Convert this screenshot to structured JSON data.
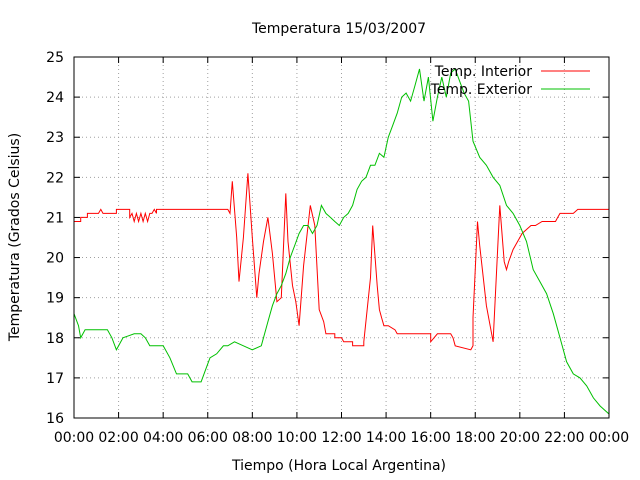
{
  "chart_data": {
    "type": "line",
    "title": "Temperatura 15/03/2007",
    "xlabel": "Tiempo (Hora Local Argentina)",
    "ylabel": "Temperatura (Grados Celsius)",
    "xlim": [
      0,
      24
    ],
    "ylim": [
      16,
      25
    ],
    "x_ticks": [
      0,
      2,
      4,
      6,
      8,
      10,
      12,
      14,
      16,
      18,
      20,
      22,
      24
    ],
    "x_tick_labels": [
      "00:00",
      "02:00",
      "04:00",
      "06:00",
      "08:00",
      "10:00",
      "12:00",
      "14:00",
      "16:00",
      "18:00",
      "20:00",
      "22:00",
      "00:00"
    ],
    "y_ticks": [
      16,
      17,
      18,
      19,
      20,
      21,
      22,
      23,
      24,
      25
    ],
    "y_tick_labels": [
      "16",
      "17",
      "18",
      "19",
      "20",
      "21",
      "22",
      "23",
      "24",
      "25"
    ],
    "grid": true,
    "legend_position": "top-right",
    "series": [
      {
        "name": "Temp. Interior",
        "color": "#ff0000",
        "x": [
          0,
          0.3,
          0.3,
          0.6,
          0.6,
          1.0,
          1.1,
          1.2,
          1.3,
          1.3,
          1.8,
          1.9,
          1.9,
          2.5,
          2.5,
          2.6,
          2.7,
          2.8,
          2.9,
          3.0,
          3.1,
          3.2,
          3.3,
          3.4,
          3.5,
          3.6,
          3.7,
          3.7,
          6.9,
          7.0,
          7.1,
          7.3,
          7.4,
          7.6,
          7.8,
          8.0,
          8.2,
          8.3,
          8.5,
          8.7,
          8.9,
          9.1,
          9.3,
          9.5,
          9.6,
          9.8,
          9.95,
          10.1,
          10.3,
          10.6,
          10.8,
          11.0,
          11.2,
          11.3,
          11.7,
          11.7,
          12.0,
          12.1,
          12.5,
          12.5,
          13.0,
          13.0,
          13.3,
          13.4,
          13.6,
          13.7,
          13.8,
          13.9,
          14.1,
          14.4,
          14.5,
          15.1,
          15.2,
          15.4,
          15.5,
          16.0,
          16.0,
          16.3,
          16.4,
          16.5,
          16.9,
          17.0,
          17.1,
          17.8,
          17.9,
          17.9,
          18.1,
          18.2,
          18.5,
          18.7,
          18.8,
          19.1,
          19.3,
          19.4,
          19.5,
          19.7,
          19.9,
          20.1,
          20.3,
          20.5,
          20.7,
          21.0,
          21.3,
          21.6,
          21.7,
          21.8,
          21.9,
          22.2,
          22.4,
          22.6,
          23.0,
          23.4,
          24.0
        ],
        "y": [
          20.9,
          20.9,
          21.0,
          21.0,
          21.1,
          21.1,
          21.1,
          21.2,
          21.1,
          21.1,
          21.1,
          21.1,
          21.2,
          21.2,
          21.0,
          21.1,
          20.9,
          21.1,
          20.9,
          21.1,
          20.9,
          21.1,
          20.9,
          21.1,
          21.1,
          21.2,
          21.1,
          21.2,
          21.2,
          21.1,
          21.9,
          20.5,
          19.4,
          20.5,
          22.1,
          20.5,
          19.0,
          19.6,
          20.4,
          21.0,
          20.1,
          18.9,
          19.0,
          21.6,
          20.4,
          19.3,
          18.9,
          18.3,
          19.8,
          21.3,
          20.8,
          18.7,
          18.4,
          18.1,
          18.1,
          18.0,
          18.0,
          17.9,
          17.9,
          17.8,
          17.8,
          17.9,
          19.5,
          20.8,
          19.3,
          18.7,
          18.5,
          18.3,
          18.3,
          18.2,
          18.1,
          18.1,
          18.1,
          18.1,
          18.1,
          18.1,
          17.9,
          18.1,
          18.1,
          18.1,
          18.1,
          18.0,
          17.8,
          17.7,
          17.8,
          18.5,
          20.9,
          20.3,
          18.8,
          18.2,
          17.9,
          21.3,
          19.9,
          19.7,
          19.9,
          20.2,
          20.4,
          20.6,
          20.7,
          20.8,
          20.8,
          20.9,
          20.9,
          20.9,
          21.0,
          21.1,
          21.1,
          21.1,
          21.1,
          21.2,
          21.2,
          21.2,
          21.2
        ]
      },
      {
        "name": "Temp. Exterior",
        "color": "#00c000",
        "x": [
          0,
          0.2,
          0.3,
          0.5,
          0.6,
          1.0,
          1.5,
          1.7,
          1.9,
          2.2,
          2.7,
          3.0,
          3.2,
          3.4,
          3.6,
          4.0,
          4.3,
          4.6,
          4.9,
          5.1,
          5.3,
          5.4,
          5.7,
          5.9,
          6.1,
          6.4,
          6.7,
          6.9,
          7.2,
          7.6,
          8.0,
          8.4,
          8.7,
          8.9,
          9.1,
          9.3,
          9.5,
          9.7,
          9.9,
          10.1,
          10.3,
          10.5,
          10.7,
          10.9,
          11.1,
          11.3,
          11.5,
          11.7,
          11.9,
          12.1,
          12.3,
          12.5,
          12.7,
          12.9,
          13.1,
          13.3,
          13.5,
          13.7,
          13.9,
          14.1,
          14.3,
          14.5,
          14.7,
          14.9,
          15.1,
          15.3,
          15.5,
          15.7,
          15.9,
          16.1,
          16.3,
          16.5,
          16.7,
          16.9,
          17.1,
          17.3,
          17.5,
          17.7,
          17.9,
          18.2,
          18.5,
          18.8,
          19.1,
          19.4,
          19.7,
          20.0,
          20.3,
          20.6,
          20.9,
          21.2,
          21.5,
          21.8,
          22.1,
          22.4,
          22.7,
          23.0,
          23.3,
          23.6,
          24.0
        ],
        "y": [
          18.6,
          18.3,
          18.0,
          18.2,
          18.2,
          18.2,
          18.2,
          18.0,
          17.7,
          18.0,
          18.1,
          18.1,
          18.0,
          17.8,
          17.8,
          17.8,
          17.5,
          17.1,
          17.1,
          17.1,
          16.9,
          16.9,
          16.9,
          17.2,
          17.5,
          17.6,
          17.8,
          17.8,
          17.9,
          17.8,
          17.7,
          17.8,
          18.4,
          18.8,
          19.1,
          19.3,
          19.6,
          20.0,
          20.3,
          20.6,
          20.8,
          20.8,
          20.6,
          20.8,
          21.3,
          21.1,
          21.0,
          20.9,
          20.8,
          21.0,
          21.1,
          21.3,
          21.7,
          21.9,
          22.0,
          22.3,
          22.3,
          22.6,
          22.5,
          23.0,
          23.3,
          23.6,
          24.0,
          24.1,
          23.9,
          24.3,
          24.7,
          23.9,
          24.5,
          23.4,
          24.0,
          24.5,
          24.0,
          24.6,
          24.7,
          24.4,
          24.1,
          23.9,
          22.9,
          22.5,
          22.3,
          22.0,
          21.8,
          21.3,
          21.1,
          20.8,
          20.4,
          19.7,
          19.4,
          19.1,
          18.6,
          18.0,
          17.4,
          17.1,
          17.0,
          16.8,
          16.5,
          16.3,
          16.1
        ]
      }
    ]
  }
}
